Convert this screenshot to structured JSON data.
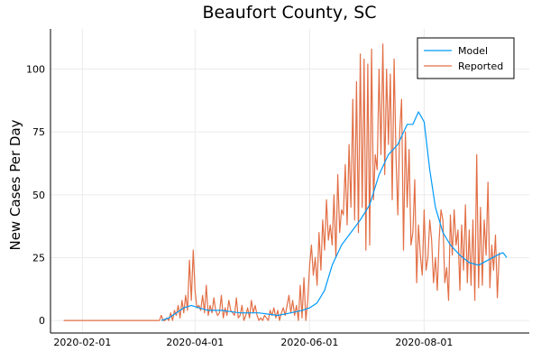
{
  "chart_data": {
    "type": "line",
    "title": "Beaufort County, SC",
    "xlabel": "",
    "ylabel": "New Cases Per Day",
    "x_axis_type": "date",
    "xlim": [
      "2020-01-15",
      "2020-09-26"
    ],
    "ylim": [
      -5,
      116
    ],
    "xticks": [
      "2020-02-01",
      "2020-04-01",
      "2020-06-01",
      "2020-08-01"
    ],
    "yticks": [
      0,
      25,
      50,
      75,
      100
    ],
    "grid": true,
    "legend_position": "top-right",
    "series": [
      {
        "name": "Model",
        "color": "#009AFA",
        "x": [
          "2020-03-14",
          "2020-03-18",
          "2020-03-22",
          "2020-03-26",
          "2020-03-30",
          "2020-04-03",
          "2020-04-08",
          "2020-04-15",
          "2020-04-25",
          "2020-05-05",
          "2020-05-15",
          "2020-05-22",
          "2020-05-28",
          "2020-06-01",
          "2020-06-05",
          "2020-06-09",
          "2020-06-13",
          "2020-06-18",
          "2020-06-23",
          "2020-06-28",
          "2020-07-03",
          "2020-07-08",
          "2020-07-13",
          "2020-07-18",
          "2020-07-23",
          "2020-07-26",
          "2020-07-29",
          "2020-08-01",
          "2020-08-04",
          "2020-08-07",
          "2020-08-11",
          "2020-08-15",
          "2020-08-20",
          "2020-08-25",
          "2020-08-30",
          "2020-09-04",
          "2020-09-09",
          "2020-09-12",
          "2020-09-14"
        ],
        "values": [
          0,
          1,
          3,
          5,
          6,
          5,
          4,
          4,
          3,
          3,
          2,
          3,
          4,
          5,
          7,
          12,
          22,
          30,
          35,
          40,
          46,
          58,
          66,
          70,
          78,
          78,
          83,
          79,
          60,
          45,
          35,
          30,
          26,
          23,
          22,
          24,
          26,
          27,
          25
        ]
      },
      {
        "name": "Reported",
        "color": "#E26F46",
        "x_start": "2020-01-22",
        "values": [
          0,
          0,
          0,
          0,
          0,
          0,
          0,
          0,
          0,
          0,
          0,
          0,
          0,
          0,
          0,
          0,
          0,
          0,
          0,
          0,
          0,
          0,
          0,
          0,
          0,
          0,
          0,
          0,
          0,
          0,
          0,
          0,
          0,
          0,
          0,
          0,
          0,
          0,
          0,
          0,
          0,
          0,
          0,
          0,
          0,
          0,
          0,
          0,
          0,
          0,
          0,
          0,
          2,
          0,
          0,
          1,
          0,
          3,
          0,
          4,
          2,
          6,
          1,
          8,
          3,
          10,
          4,
          24,
          8,
          28,
          12,
          5,
          6,
          4,
          10,
          3,
          14,
          2,
          6,
          3,
          9,
          4,
          2,
          3,
          10,
          1,
          5,
          2,
          8,
          4,
          3,
          2,
          9,
          1,
          2,
          6,
          0,
          2,
          5,
          1,
          8,
          3,
          6,
          2,
          0,
          1,
          0,
          2,
          1,
          0,
          4,
          2,
          5,
          1,
          4,
          0,
          3,
          5,
          2,
          6,
          10,
          3,
          8,
          2,
          6,
          0,
          14,
          1,
          17,
          0,
          8,
          22,
          30,
          18,
          25,
          14,
          35,
          20,
          40,
          28,
          48,
          32,
          38,
          30,
          50,
          25,
          58,
          35,
          44,
          42,
          62,
          38,
          70,
          45,
          88,
          40,
          95,
          35,
          106,
          45,
          104,
          28,
          102,
          30,
          108,
          48,
          66,
          60,
          100,
          66,
          110,
          58,
          100,
          70,
          98,
          48,
          104,
          65,
          42,
          75,
          88,
          28,
          75,
          45,
          68,
          30,
          35,
          56,
          15,
          38,
          26,
          18,
          44,
          20,
          25,
          40,
          32,
          15,
          25,
          12,
          32,
          44,
          40,
          15,
          21,
          8,
          42,
          26,
          44,
          30,
          36,
          12,
          38,
          20,
          46,
          15,
          36,
          14,
          40,
          8,
          66,
          13,
          45,
          14,
          40,
          26,
          55,
          13,
          30,
          20,
          34,
          9,
          27
        ]
      }
    ]
  }
}
